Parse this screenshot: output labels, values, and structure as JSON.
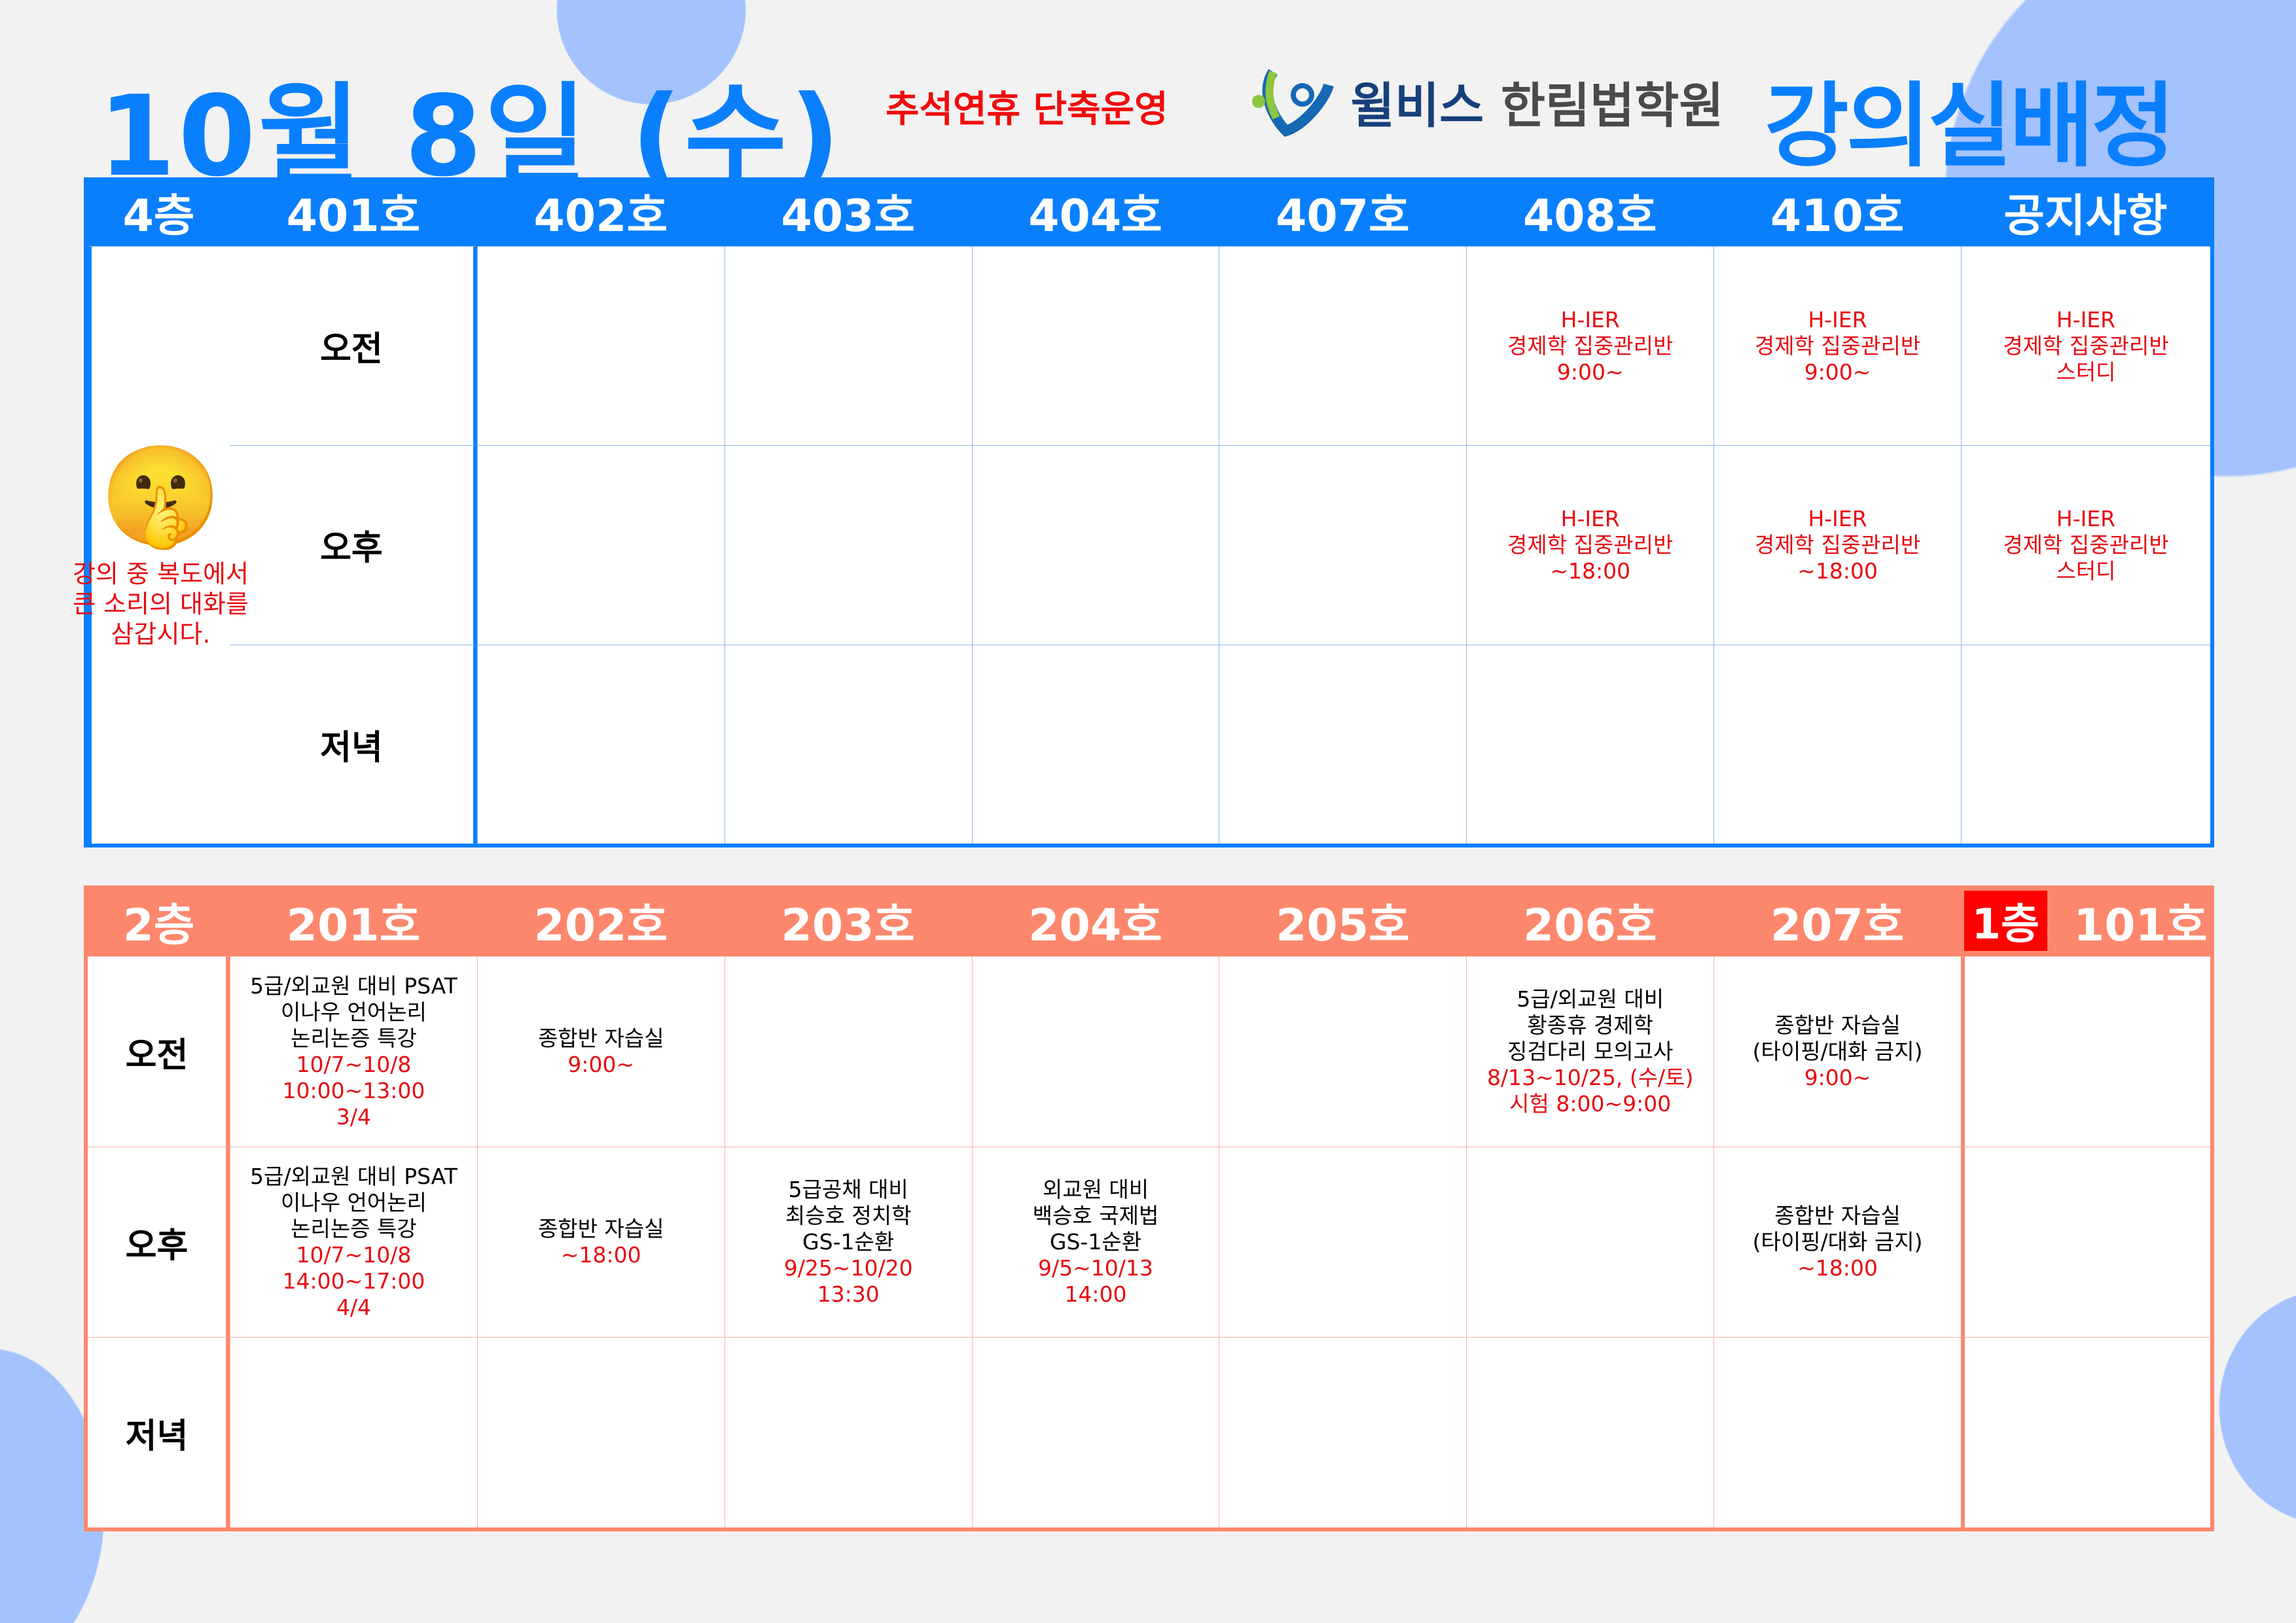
{
  "header": {
    "date_title": "10월 8일 (수)",
    "notice_banner": "추석연휴 단축운영",
    "logo_text_a": "윌비스",
    "logo_text_b": "한림법학원",
    "page_title": "강의실배정"
  },
  "colors": {
    "blue": "#0a7ffd",
    "orange": "#fd876d",
    "red": "#e8090f",
    "blob": "#a4c2fd"
  },
  "row_labels": [
    "오전",
    "오후",
    "저녁"
  ],
  "floor4": {
    "floor": "4층",
    "rooms": [
      "401호",
      "402호",
      "403호",
      "404호",
      "407호",
      "408호",
      "410호"
    ],
    "notice_header": "공지사항",
    "notice": {
      "icon": "shushing-face-icon",
      "emoji": "🤫",
      "lines": [
        "강의 중 복도에서",
        "큰 소리의 대화를",
        "삼갑시다."
      ]
    },
    "cells": [
      [
        [],
        [],
        [],
        [],
        [
          {
            "t": "H-IER",
            "r": true
          },
          {
            "t": "경제학 집중관리반",
            "r": true
          },
          {
            "t": "9:00~",
            "r": true
          }
        ],
        [
          {
            "t": "H-IER",
            "r": true
          },
          {
            "t": "경제학 집중관리반",
            "r": true
          },
          {
            "t": "9:00~",
            "r": true
          }
        ],
        [
          {
            "t": "H-IER",
            "r": true
          },
          {
            "t": "경제학 집중관리반",
            "r": true
          },
          {
            "t": "스터디",
            "r": true
          }
        ]
      ],
      [
        [],
        [],
        [],
        [],
        [
          {
            "t": "H-IER",
            "r": true
          },
          {
            "t": "경제학 집중관리반",
            "r": true
          },
          {
            "t": "~18:00",
            "r": true
          }
        ],
        [
          {
            "t": "H-IER",
            "r": true
          },
          {
            "t": "경제학 집중관리반",
            "r": true
          },
          {
            "t": "~18:00",
            "r": true
          }
        ],
        [
          {
            "t": "H-IER",
            "r": true
          },
          {
            "t": "경제학 집중관리반",
            "r": true
          },
          {
            "t": "스터디",
            "r": true
          }
        ]
      ],
      [
        [],
        [],
        [],
        [],
        [],
        [],
        []
      ]
    ]
  },
  "floor2": {
    "floor": "2층",
    "rooms": [
      "201호",
      "202호",
      "203호",
      "204호",
      "205호",
      "206호",
      "207호"
    ],
    "floor1_badge": "1층",
    "floor1_room": "101호",
    "cells": [
      [
        [
          {
            "t": "5급/외교원 대비 PSAT"
          },
          {
            "t": "이나우 언어논리"
          },
          {
            "t": "논리논증 특강"
          },
          {
            "t": "10/7~10/8",
            "r": true
          },
          {
            "t": "10:00~13:00",
            "r": true
          },
          {
            "t": "3/4",
            "r": true
          }
        ],
        [
          {
            "t": "종합반 자습실"
          },
          {
            "t": "9:00~",
            "r": true
          }
        ],
        [],
        [],
        [],
        [
          {
            "t": "5급/외교원 대비"
          },
          {
            "t": "황종휴 경제학"
          },
          {
            "t": "징검다리 모의고사"
          },
          {
            "t": "8/13~10/25, (수/토)",
            "r": true
          },
          {
            "t": "시험 8:00~9:00",
            "r": true
          }
        ],
        [
          {
            "t": "종합반 자습실"
          },
          {
            "t": "(타이핑/대화 금지)"
          },
          {
            "t": "9:00~",
            "r": true
          }
        ],
        []
      ],
      [
        [
          {
            "t": "5급/외교원 대비 PSAT"
          },
          {
            "t": "이나우 언어논리"
          },
          {
            "t": "논리논증 특강"
          },
          {
            "t": "10/7~10/8",
            "r": true
          },
          {
            "t": "14:00~17:00",
            "r": true
          },
          {
            "t": "4/4",
            "r": true
          }
        ],
        [
          {
            "t": "종합반 자습실"
          },
          {
            "t": "~18:00",
            "r": true
          }
        ],
        [
          {
            "t": "5급공채 대비"
          },
          {
            "t": "최승호 정치학"
          },
          {
            "t": "GS-1순환"
          },
          {
            "t": "9/25~10/20",
            "r": true
          },
          {
            "t": "13:30",
            "r": true
          }
        ],
        [
          {
            "t": "외교원 대비"
          },
          {
            "t": "백승호 국제법"
          },
          {
            "t": "GS-1순환"
          },
          {
            "t": "9/5~10/13",
            "r": true
          },
          {
            "t": "14:00",
            "r": true
          }
        ],
        [],
        [],
        [
          {
            "t": "종합반 자습실"
          },
          {
            "t": "(타이핑/대화 금지)"
          },
          {
            "t": "~18:00",
            "r": true
          }
        ],
        []
      ],
      [
        [],
        [],
        [],
        [],
        [],
        [],
        [],
        []
      ]
    ]
  }
}
